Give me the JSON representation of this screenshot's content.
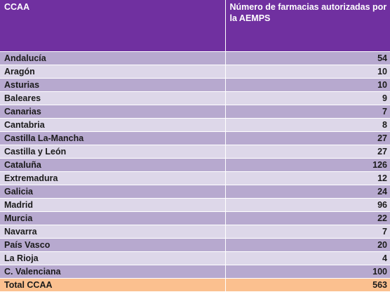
{
  "table": {
    "headers": [
      "CCAA",
      "Número de farmacias autorizadas por la AEMPS"
    ],
    "rows": [
      [
        "Andalucía",
        "54"
      ],
      [
        "Aragón",
        "10"
      ],
      [
        "Asturias",
        "10"
      ],
      [
        "Baleares",
        "9"
      ],
      [
        "Canarias",
        "7"
      ],
      [
        "Cantabria",
        "8"
      ],
      [
        "Castilla La-Mancha",
        "27"
      ],
      [
        "Castilla y León",
        "27"
      ],
      [
        "Cataluña",
        "126"
      ],
      [
        "Extremadura",
        "12"
      ],
      [
        "Galicia",
        "24"
      ],
      [
        "Madrid",
        "96"
      ],
      [
        "Murcia",
        "22"
      ],
      [
        "Navarra",
        "7"
      ],
      [
        "País Vasco",
        "20"
      ],
      [
        "La Rioja",
        "4"
      ],
      [
        "C. Valenciana",
        "100"
      ]
    ],
    "total": [
      "Total CCAA",
      "563"
    ]
  },
  "colors": {
    "header_bg": "#7030a0",
    "row_dark": "#b7a9cf",
    "row_light": "#ddd7e9",
    "total_bg": "#fbc08f"
  }
}
